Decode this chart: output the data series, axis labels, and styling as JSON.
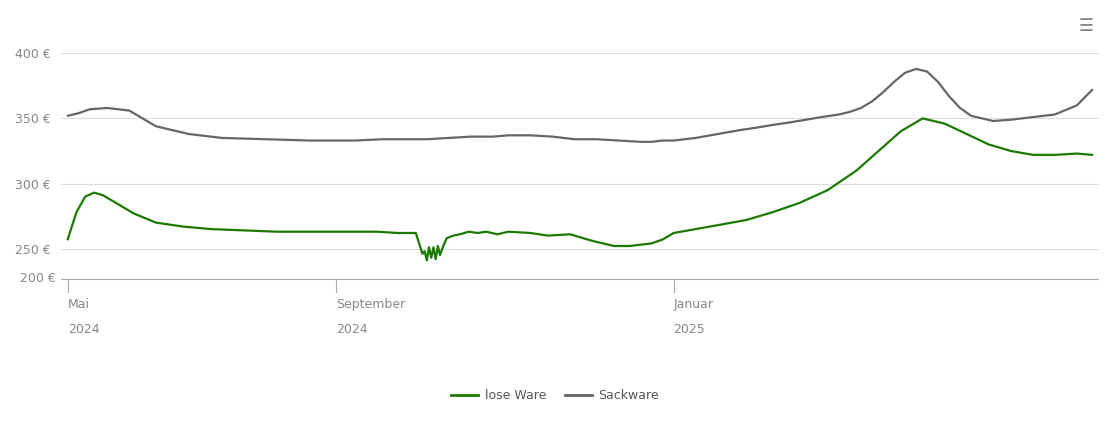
{
  "background_color": "#ffffff",
  "plot_bg_color": "#ffffff",
  "grid_color": "#dddddd",
  "lose_ware_color": "#1a7a00",
  "sackware_color": "#666666",
  "legend_labels": [
    "lose Ware",
    "Sackware"
  ],
  "ylim": [
    200,
    415
  ],
  "yticks": [
    200,
    250,
    300,
    350,
    400
  ],
  "x_tick_labels": [
    "Mai\n2024",
    "September\n2024",
    "Januar\n2025"
  ],
  "x_tick_positions": [
    0,
    122,
    275
  ],
  "title_icon": "☰",
  "lose_ware_x": [
    0,
    4,
    8,
    12,
    16,
    22,
    30,
    40,
    52,
    65,
    80,
    95,
    110,
    122,
    130,
    140,
    150,
    158,
    161,
    162,
    163,
    164,
    165,
    166,
    167,
    168,
    169,
    170,
    172,
    175,
    178,
    182,
    186,
    190,
    195,
    200,
    210,
    218,
    228,
    238,
    248,
    255,
    260,
    265,
    270,
    275,
    285,
    295,
    308,
    320,
    332,
    345,
    358,
    368,
    378,
    388,
    398,
    408,
    418,
    428,
    438,
    448,
    458,
    465
  ],
  "lose_ware_y": [
    257,
    278,
    290,
    293,
    291,
    285,
    277,
    270,
    267,
    265,
    264,
    263,
    263,
    263,
    263,
    263,
    262,
    262,
    246,
    248,
    241,
    251,
    243,
    251,
    242,
    252,
    245,
    250,
    258,
    260,
    261,
    263,
    262,
    263,
    261,
    263,
    262,
    260,
    261,
    256,
    252,
    252,
    253,
    254,
    257,
    262,
    265,
    268,
    272,
    278,
    285,
    295,
    310,
    325,
    340,
    350,
    346,
    338,
    330,
    325,
    322,
    322,
    323,
    322
  ],
  "sackware_x": [
    0,
    5,
    10,
    18,
    28,
    40,
    55,
    70,
    90,
    110,
    122,
    130,
    143,
    155,
    163,
    173,
    183,
    193,
    200,
    210,
    220,
    230,
    240,
    250,
    260,
    265,
    270,
    275,
    285,
    295,
    305,
    313,
    320,
    328,
    335,
    342,
    350,
    355,
    360,
    365,
    370,
    375,
    380,
    385,
    390,
    395,
    400,
    405,
    410,
    415,
    420,
    428,
    438,
    448,
    458,
    465
  ],
  "sackware_y": [
    352,
    354,
    357,
    358,
    356,
    344,
    338,
    335,
    334,
    333,
    333,
    333,
    334,
    334,
    334,
    335,
    336,
    336,
    337,
    337,
    336,
    334,
    334,
    333,
    332,
    332,
    333,
    333,
    335,
    338,
    341,
    343,
    345,
    347,
    349,
    351,
    353,
    355,
    358,
    363,
    370,
    378,
    385,
    388,
    386,
    378,
    367,
    358,
    352,
    350,
    348,
    349,
    351,
    353,
    360,
    372
  ]
}
